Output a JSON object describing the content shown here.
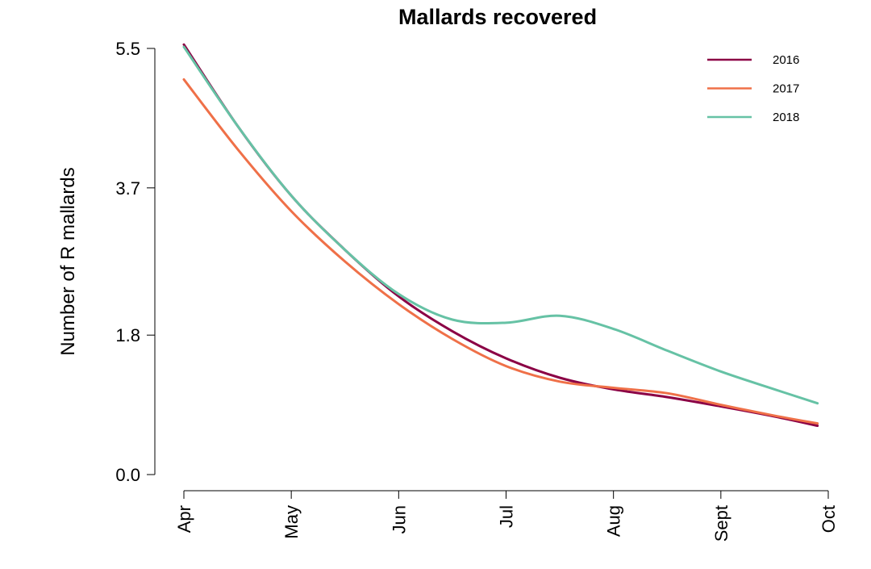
{
  "chart_data": {
    "type": "line",
    "title": "Mallards recovered",
    "xlabel": "",
    "ylabel": "Number of R mallards",
    "x_ticks": [
      "Apr",
      "May",
      "Jun",
      "Jul",
      "Aug",
      "Sept",
      "Oct"
    ],
    "xlim": [
      0,
      6
    ],
    "y_ticks": [
      "0.0",
      "1.8",
      "3.7",
      "5.5"
    ],
    "ylim": [
      0,
      5.5
    ],
    "legend_position": "top-right",
    "grid": false,
    "series": [
      {
        "name": "2016",
        "color": "#8b0045",
        "x": [
          0,
          0.5,
          1,
          1.5,
          2,
          2.5,
          3,
          3.5,
          4,
          4.5,
          5,
          5.5,
          5.9
        ],
        "y": [
          5.55,
          4.5,
          3.6,
          2.9,
          2.3,
          1.85,
          1.5,
          1.25,
          1.1,
          1.0,
          0.88,
          0.75,
          0.63
        ]
      },
      {
        "name": "2017",
        "color": "#ef7048",
        "x": [
          0,
          0.5,
          1,
          1.5,
          2,
          2.5,
          3,
          3.5,
          4,
          4.5,
          5,
          5.5,
          5.9
        ],
        "y": [
          5.1,
          4.2,
          3.4,
          2.75,
          2.2,
          1.75,
          1.4,
          1.2,
          1.12,
          1.05,
          0.9,
          0.76,
          0.66
        ]
      },
      {
        "name": "2018",
        "color": "#66c2a5",
        "x": [
          0,
          0.5,
          1,
          1.5,
          2,
          2.5,
          3,
          3.5,
          4,
          4.5,
          5,
          5.5,
          5.9
        ],
        "y": [
          5.52,
          4.5,
          3.6,
          2.9,
          2.33,
          2.0,
          1.96,
          2.05,
          1.88,
          1.6,
          1.33,
          1.1,
          0.92
        ]
      }
    ]
  }
}
